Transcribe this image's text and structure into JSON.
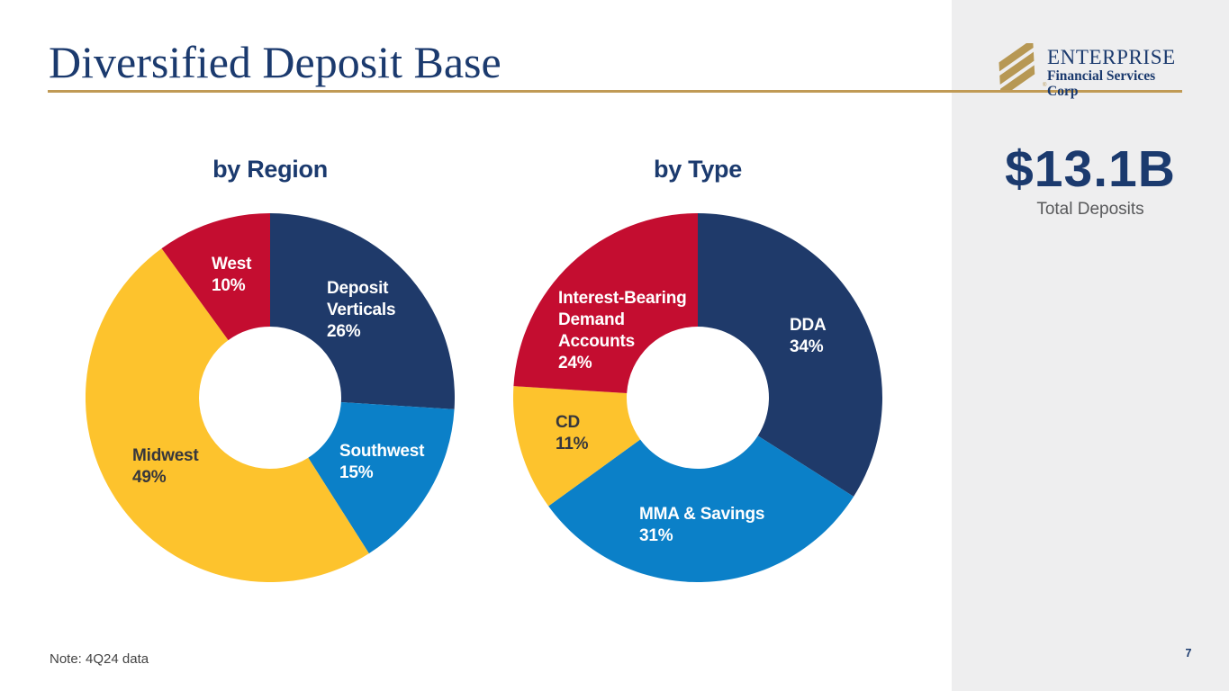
{
  "page": {
    "title": "Diversified Deposit Base",
    "note": "Note: 4Q24 data",
    "page_number": "7"
  },
  "logo": {
    "name": "ENTERPRISE",
    "subtitle": "Financial Services Corp",
    "registered_mark": "®"
  },
  "sidebar": {
    "total_value": "$13.1B",
    "total_label": "Total Deposits"
  },
  "colors": {
    "navy": "#1f3a6a",
    "blue": "#0b80c8",
    "gold": "#fdc32d",
    "red": "#c40d30",
    "text_navy": "#1b3a6e",
    "rule_gold": "#c09a55",
    "logo_gold": "#b79854",
    "sidebar_bg": "#eeeeef",
    "label_dark": "#37373c",
    "label_gray": "#58595b"
  },
  "chart_data": [
    {
      "type": "pie",
      "title": "by Region",
      "donut": true,
      "start_angle_deg": 0,
      "direction": "clockwise",
      "slices": [
        {
          "name": "Deposit Verticals",
          "value": 26,
          "color": "#1f3a6a",
          "label_lines": [
            "Deposit",
            "Verticals",
            "26%"
          ],
          "label_color": "#ffffff"
        },
        {
          "name": "Southwest",
          "value": 15,
          "color": "#0b80c8",
          "label_lines": [
            "Southwest",
            "15%"
          ],
          "label_color": "#ffffff"
        },
        {
          "name": "Midwest",
          "value": 49,
          "color": "#fdc32d",
          "label_lines": [
            "Midwest",
            "49%"
          ],
          "label_color": "#37373c"
        },
        {
          "name": "West",
          "value": 10,
          "color": "#c40d30",
          "label_lines": [
            "West",
            "10%"
          ],
          "label_color": "#ffffff"
        }
      ]
    },
    {
      "type": "pie",
      "title": "by Type",
      "donut": true,
      "start_angle_deg": 0,
      "direction": "clockwise",
      "slices": [
        {
          "name": "DDA",
          "value": 34,
          "color": "#1f3a6a",
          "label_lines": [
            "DDA",
            "34%"
          ],
          "label_color": "#ffffff"
        },
        {
          "name": "MMA & Savings",
          "value": 31,
          "color": "#0b80c8",
          "label_lines": [
            "MMA & Savings",
            "31%"
          ],
          "label_color": "#ffffff"
        },
        {
          "name": "CD",
          "value": 11,
          "color": "#fdc32d",
          "label_lines": [
            "CD",
            "11%"
          ],
          "label_color": "#37373c"
        },
        {
          "name": "Interest-Bearing Demand Accounts",
          "value": 24,
          "color": "#c40d30",
          "label_lines": [
            "Interest-Bearing",
            "Demand",
            "Accounts",
            "24%"
          ],
          "label_color": "#ffffff"
        }
      ]
    }
  ]
}
